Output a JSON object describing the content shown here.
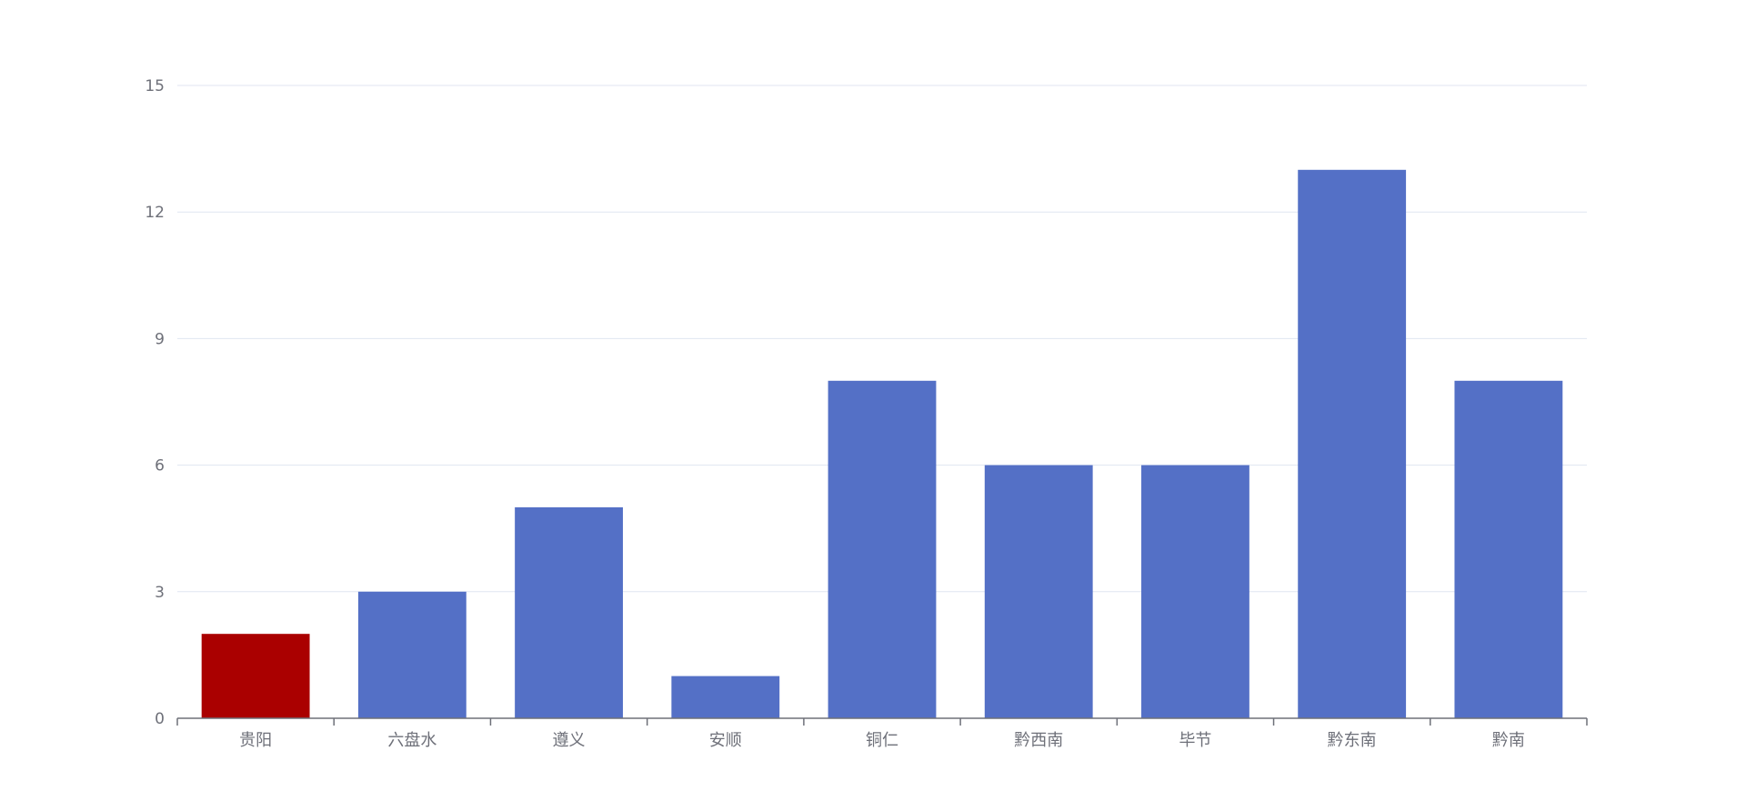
{
  "chart_data": {
    "type": "bar",
    "title": "",
    "xlabel": "",
    "ylabel": "",
    "categories": [
      "贵阳",
      "六盘水",
      "遵义",
      "安顺",
      "铜仁",
      "黔西南",
      "毕节",
      "黔东南",
      "黔南"
    ],
    "values": [
      2,
      3,
      5,
      1,
      8,
      6,
      6,
      13,
      8
    ],
    "ylim": [
      0,
      15
    ],
    "yticks": [
      0,
      3,
      6,
      9,
      12,
      15
    ],
    "grid": true,
    "legend": "none",
    "colors": {
      "bar": "#5470c6",
      "highlight": "#aa0000",
      "gridline": "#e0e6f1",
      "axis": "#6e7079"
    },
    "highlight_index": 0
  }
}
